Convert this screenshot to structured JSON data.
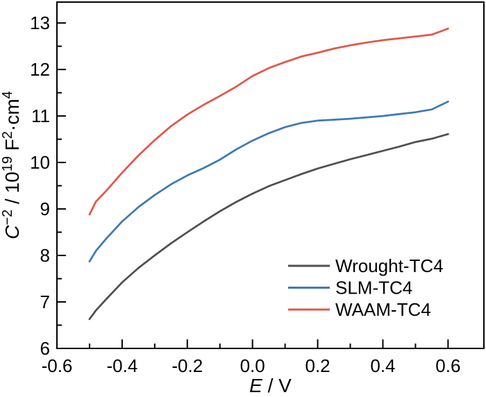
{
  "window": {
    "background": "#ffffff"
  },
  "chart_data": {
    "type": "line",
    "title": "",
    "xlabel": "E / V",
    "ylabel": "C⁻² / 10¹⁹ F²·cm⁴",
    "xlabel_rich": [
      {
        "t": "E",
        "i": 1
      },
      {
        "t": " / V"
      }
    ],
    "ylabel_rich": [
      {
        "t": "C",
        "i": 1
      },
      {
        "t": "−2",
        "s": 1
      },
      {
        "t": " / 10"
      },
      {
        "t": "19",
        "s": 1
      },
      {
        "t": " F"
      },
      {
        "t": "2",
        "s": 1
      },
      {
        "t": "·cm"
      },
      {
        "t": "4",
        "s": 1
      }
    ],
    "xlim": [
      -0.6,
      0.71
    ],
    "ylim": [
      6,
      13.45
    ],
    "xticks": [
      -0.6,
      -0.4,
      -0.2,
      0.0,
      0.2,
      0.4,
      0.6
    ],
    "xtick_labels": [
      "-0.6",
      "-0.4",
      "-0.2",
      "0.0",
      "0.2",
      "0.4",
      "0.6"
    ],
    "xticks_minor": [
      -0.5,
      -0.3,
      -0.1,
      0.1,
      0.3,
      0.5
    ],
    "yticks": [
      6,
      7,
      8,
      9,
      10,
      11,
      12,
      13
    ],
    "ytick_labels": [
      "6",
      "7",
      "8",
      "9",
      "10",
      "11",
      "12",
      "13"
    ],
    "yticks_minor": [
      6.5,
      7.5,
      8.5,
      9.5,
      10.5,
      11.5,
      12.5
    ],
    "grid": false,
    "axis_color": "#000000",
    "legend_position": "inside lower right",
    "x": [
      -0.5,
      -0.48,
      -0.45,
      -0.4,
      -0.35,
      -0.3,
      -0.25,
      -0.2,
      -0.15,
      -0.1,
      -0.05,
      0.0,
      0.05,
      0.1,
      0.15,
      0.2,
      0.25,
      0.3,
      0.35,
      0.4,
      0.45,
      0.5,
      0.55,
      0.6
    ],
    "series": [
      {
        "name": "Wrought-TC4",
        "color": "#4f4f4f",
        "values": [
          6.63,
          6.82,
          7.05,
          7.42,
          7.73,
          8.0,
          8.26,
          8.5,
          8.73,
          8.95,
          9.15,
          9.33,
          9.49,
          9.62,
          9.75,
          9.87,
          9.97,
          10.07,
          10.16,
          10.25,
          10.34,
          10.44,
          10.51,
          10.61
        ]
      },
      {
        "name": "SLM-TC4",
        "color": "#3d79b5",
        "values": [
          7.87,
          8.1,
          8.35,
          8.73,
          9.04,
          9.3,
          9.53,
          9.72,
          9.88,
          10.06,
          10.28,
          10.47,
          10.63,
          10.76,
          10.85,
          10.9,
          10.92,
          10.94,
          10.97,
          11.0,
          11.04,
          11.08,
          11.14,
          11.31
        ]
      },
      {
        "name": "WAAM-TC4",
        "color": "#e25749",
        "values": [
          8.88,
          9.16,
          9.38,
          9.78,
          10.15,
          10.48,
          10.78,
          11.03,
          11.24,
          11.43,
          11.63,
          11.86,
          12.03,
          12.16,
          12.28,
          12.36,
          12.45,
          12.52,
          12.58,
          12.63,
          12.67,
          12.71,
          12.75,
          12.88
        ]
      }
    ]
  }
}
